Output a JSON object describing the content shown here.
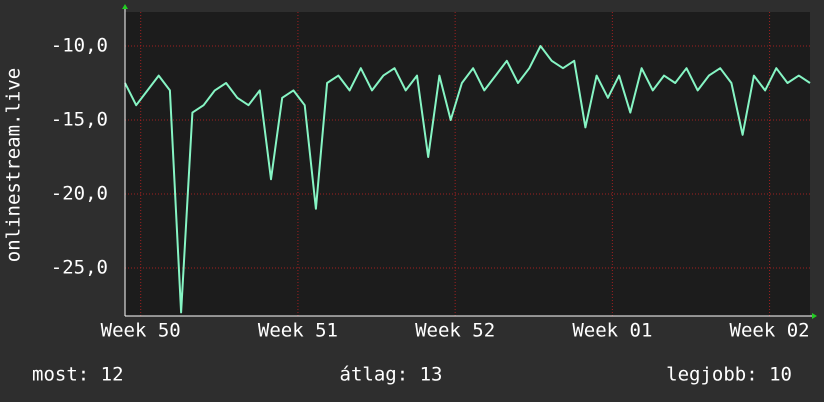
{
  "chart_data": {
    "type": "line",
    "y_label": "onlinestream.live",
    "x": [
      0,
      0.5,
      1,
      1.5,
      2,
      2.5,
      3,
      3.5,
      4,
      4.5,
      5,
      5.5,
      6,
      6.5,
      7,
      7.5,
      8,
      8.5,
      9,
      9.5,
      10,
      10.5,
      11,
      11.5,
      12,
      12.5,
      13,
      13.5,
      14,
      14.5,
      15,
      15.5,
      16,
      16.5,
      17,
      17.5,
      18,
      18.5,
      19,
      19.5,
      20,
      20.5,
      21,
      21.5,
      22,
      22.5,
      23,
      23.5,
      24,
      24.5,
      25,
      25.5,
      26,
      26.5,
      27,
      27.5,
      28,
      28.5,
      29,
      29.5,
      30,
      30.5
    ],
    "series": [
      {
        "name": "onlinestream.live",
        "color": "#86f5c4",
        "values": [
          -12.5,
          -14,
          -13,
          -12,
          -13,
          -28.0,
          -14.5,
          -14,
          -13,
          -12.5,
          -13.5,
          -14,
          -13,
          -19,
          -13.5,
          -13,
          -14,
          -21,
          -12.5,
          -12,
          -13,
          -11.5,
          -13,
          -12,
          -11.5,
          -13,
          -12,
          -17.5,
          -12,
          -15,
          -12.5,
          -11.5,
          -13,
          -12,
          -11,
          -12.5,
          -11.5,
          -10,
          -11,
          -11.5,
          -11,
          -15.5,
          -12,
          -13.5,
          -12,
          -14.5,
          -11.5,
          -13,
          -12,
          -12.5,
          -11.5,
          -13,
          -12,
          -11.5,
          -12.5,
          -16,
          -12,
          -13,
          -11.5,
          -12.5,
          -12,
          -12.5
        ]
      }
    ],
    "xlim": [
      0,
      30.5
    ],
    "xticks": [
      {
        "value": 0.7,
        "label": "Week 50"
      },
      {
        "value": 7.7,
        "label": "Week 51"
      },
      {
        "value": 14.7,
        "label": "Week 52"
      },
      {
        "value": 21.7,
        "label": "Week 01"
      },
      {
        "value": 28.7,
        "label": "Week 02"
      }
    ],
    "ylim": [
      -28.24,
      -7.7
    ],
    "yticks": [
      {
        "value": -10,
        "label": "-10,0"
      },
      {
        "value": -15,
        "label": "-15,0"
      },
      {
        "value": -20,
        "label": "-20,0"
      },
      {
        "value": -25,
        "label": "-25,0"
      }
    ],
    "grid": true,
    "footer": [
      "most: 12",
      "átlag: 13",
      "legjobb: 10"
    ]
  }
}
